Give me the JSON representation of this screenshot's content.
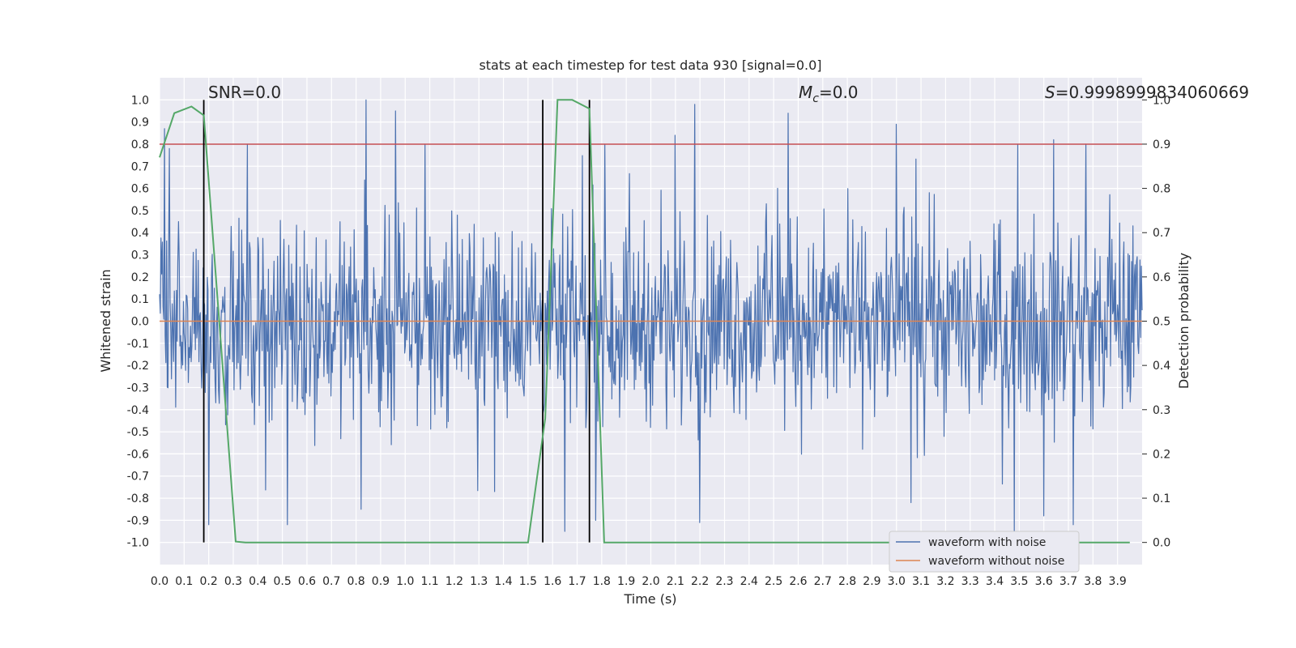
{
  "chart_data": {
    "type": "line",
    "title": "stats at each timestep for test data 930 [signal=0.0]",
    "xlabel": "Time (s)",
    "ylabel": "Whitened strain",
    "ylabel_right": "Detection probability",
    "xlim": [
      0.0,
      4.0
    ],
    "ylim": [
      -1.1,
      1.1
    ],
    "ylim_right": [
      -0.05,
      1.05
    ],
    "x_ticks": [
      "0.0",
      "0.1",
      "0.2",
      "0.3",
      "0.4",
      "0.5",
      "0.6",
      "0.7",
      "0.8",
      "0.9",
      "1.0",
      "1.1",
      "1.2",
      "1.3",
      "1.4",
      "1.5",
      "1.6",
      "1.7",
      "1.8",
      "1.9",
      "2.0",
      "2.1",
      "2.2",
      "2.3",
      "2.4",
      "2.5",
      "2.6",
      "2.7",
      "2.8",
      "2.9",
      "3.0",
      "3.1",
      "3.2",
      "3.3",
      "3.4",
      "3.5",
      "3.6",
      "3.7",
      "3.8",
      "3.9"
    ],
    "y_ticks": [
      "1.0",
      "0.9",
      "0.8",
      "0.7",
      "0.6",
      "0.5",
      "0.4",
      "0.3",
      "0.2",
      "0.1",
      "0.0",
      "-0.1",
      "-0.2",
      "-0.3",
      "-0.4",
      "-0.5",
      "-0.6",
      "-0.7",
      "-0.8",
      "-0.9",
      "-1.0"
    ],
    "y_right_ticks": [
      "1.0",
      "0.9",
      "0.8",
      "0.7",
      "0.6",
      "0.5",
      "0.4",
      "0.3",
      "0.2",
      "0.1",
      "0.0"
    ],
    "grid": true,
    "legend_position": "lower-right",
    "annotations": {
      "snr": "SNR=0.0",
      "mc_symbol": "M",
      "mc_sub": "c",
      "mc_value": "=0.0",
      "s_symbol": "S",
      "s_value": "=0.9998999834060669"
    },
    "series": [
      {
        "name": "waveform with noise",
        "color": "#4c72b0",
        "kind": "noise",
        "peaks_positive": [
          [
            0.02,
            0.87
          ],
          [
            0.04,
            0.78
          ],
          [
            0.84,
            1.0
          ],
          [
            0.96,
            0.95
          ],
          [
            1.08,
            0.8
          ],
          [
            2.1,
            0.84
          ],
          [
            2.18,
            0.98
          ],
          [
            2.56,
            0.94
          ],
          [
            3.0,
            0.89
          ],
          [
            3.64,
            0.82
          ],
          [
            3.72,
            0.83
          ]
        ],
        "peaks_negative": [
          [
            0.2,
            -0.92
          ],
          [
            0.52,
            -0.92
          ],
          [
            0.82,
            -0.85
          ],
          [
            1.65,
            -0.95
          ],
          [
            2.2,
            -0.91
          ],
          [
            3.48,
            -0.95
          ],
          [
            3.6,
            -0.88
          ],
          [
            3.72,
            -0.92
          ]
        ]
      },
      {
        "name": "waveform without noise",
        "color": "#dd8452",
        "x": [
          0.0,
          4.0
        ],
        "y": [
          0.0,
          0.0
        ]
      },
      {
        "name": "detection probability",
        "axis": "right",
        "color": "#55a868",
        "x": [
          0.0,
          0.06,
          0.13,
          0.18,
          0.31,
          0.35,
          1.5,
          1.57,
          1.62,
          1.68,
          1.75,
          1.81,
          3.95
        ],
        "y": [
          0.87,
          0.97,
          0.985,
          0.965,
          0.002,
          0.0,
          0.0,
          0.28,
          1.0,
          1.0,
          0.98,
          0.0,
          0.0
        ]
      }
    ],
    "threshold": {
      "value": 0.9,
      "axis": "right",
      "color": "#c44e52"
    },
    "vertical_markers": {
      "x": [
        0.18,
        1.56,
        1.75
      ],
      "color": "#000000",
      "y_range": [
        0.0,
        1.0
      ]
    }
  }
}
